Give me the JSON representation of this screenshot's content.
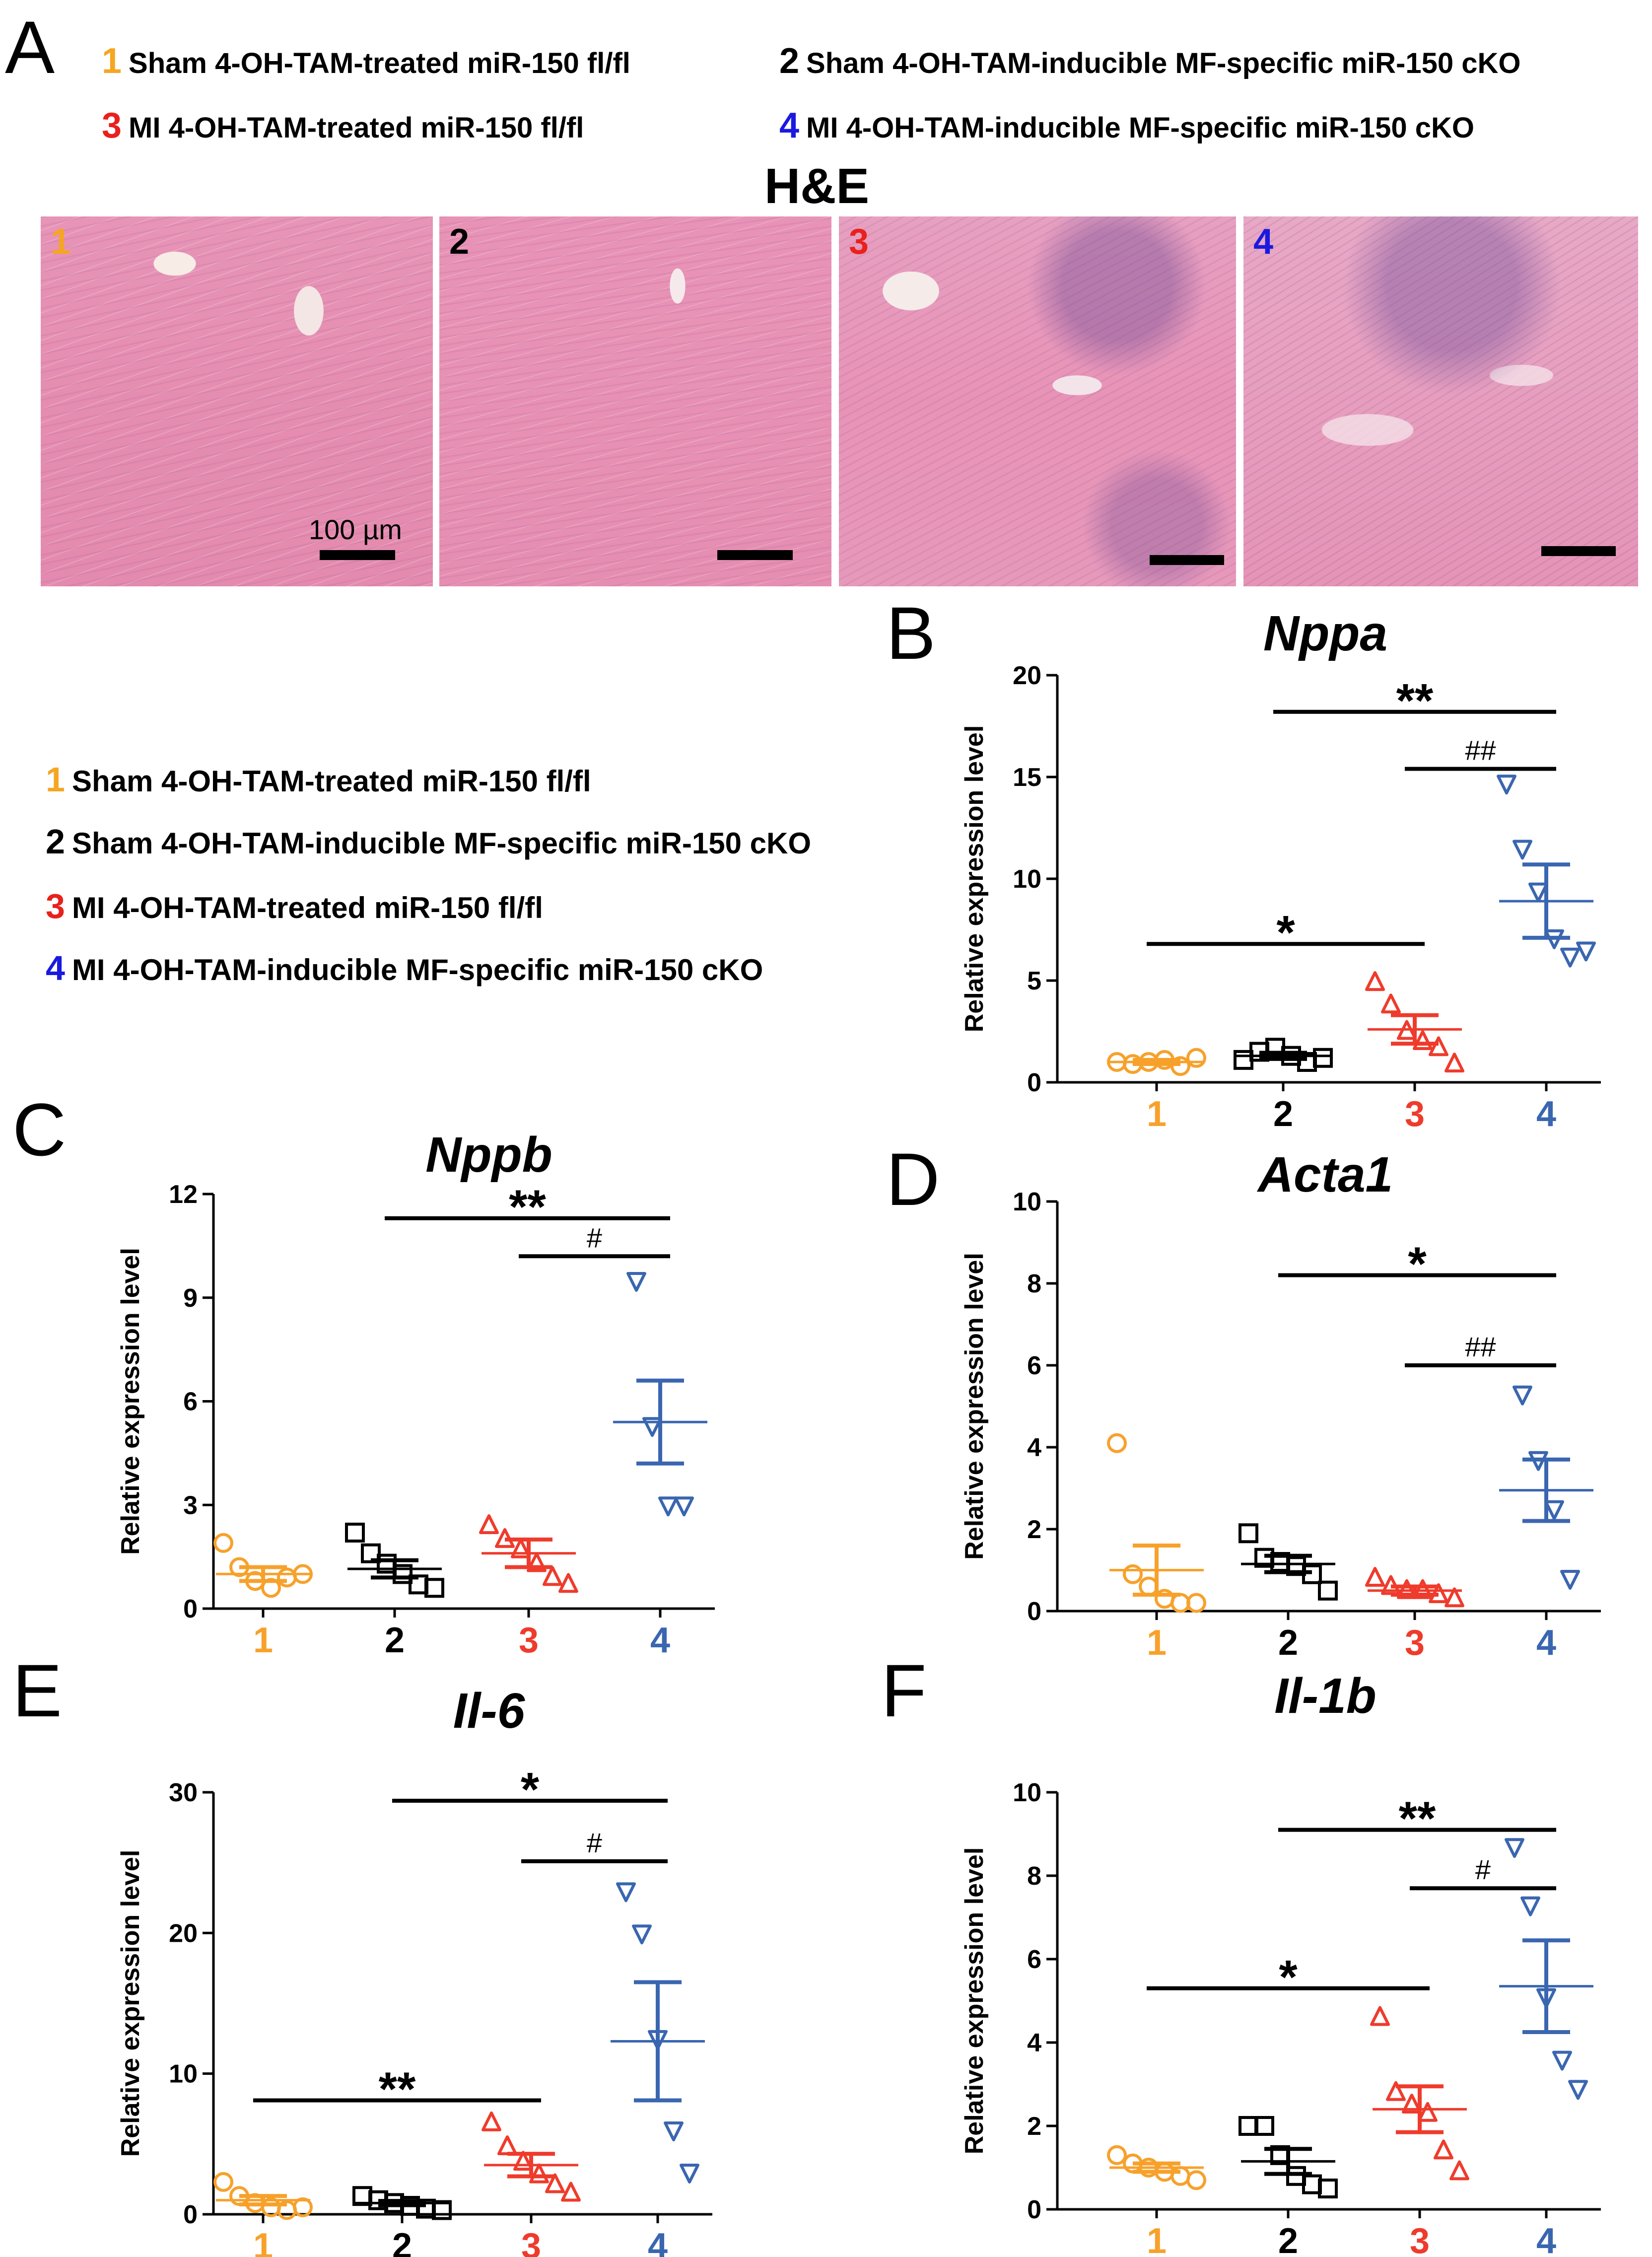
{
  "panel_labels": [
    "A",
    "B",
    "C",
    "D",
    "E",
    "F"
  ],
  "legend": [
    {
      "num": "1",
      "text": "Sham 4-OH-TAM-treated miR-150 fl/fl",
      "color": "#f5a623"
    },
    {
      "num": "2",
      "text": "Sham 4-OH-TAM-inducible MF-specific miR-150 cKO",
      "color": "#000000"
    },
    {
      "num": "3",
      "text": "MI 4-OH-TAM-treated miR-150 fl/fl",
      "color": "#e8211d"
    },
    {
      "num": "4",
      "text": "MI 4-OH-TAM-inducible MF-specific miR-150 cKO",
      "color": "#1a1adf"
    }
  ],
  "he_title": "H&E",
  "scale_label": "100 µm",
  "micrograph_labels": [
    "1",
    "2",
    "3",
    "4"
  ],
  "group_colors": [
    "#f7a12b",
    "#000000",
    "#ef3b2c",
    "#3a66b0"
  ],
  "chart_data": [
    {
      "panel": "B",
      "type": "scatter",
      "title": "Nppa",
      "ylabel": "Relative expression level",
      "categories": [
        "1",
        "2",
        "3",
        "4"
      ],
      "ylim": [
        0,
        20
      ],
      "yticks": [
        0,
        5,
        10,
        15,
        20
      ],
      "series": [
        {
          "points": [
            1.0,
            0.9,
            1.0,
            1.1,
            0.8,
            1.2
          ],
          "mean": 1.0,
          "sem": 0.1
        },
        {
          "points": [
            1.1,
            1.5,
            1.7,
            1.3,
            1.0,
            1.2
          ],
          "mean": 1.3,
          "sem": 0.15
        },
        {
          "points": [
            4.9,
            3.8,
            2.5,
            2.0,
            1.7,
            0.9
          ],
          "mean": 2.6,
          "sem": 0.7
        },
        {
          "points": [
            14.7,
            11.5,
            9.4,
            7.1,
            6.2,
            6.5
          ],
          "mean": 8.9,
          "sem": 1.8
        }
      ],
      "brackets": [
        {
          "from": 0,
          "to": 2,
          "level": 6.8,
          "label": "*"
        },
        {
          "from": 1,
          "to": 3,
          "level": 18.2,
          "label": "**"
        },
        {
          "from": 2,
          "to": 3,
          "level": 15.4,
          "label": "##"
        }
      ]
    },
    {
      "panel": "C",
      "type": "scatter",
      "title": "Nppb",
      "ylabel": "Relative expression level",
      "categories": [
        "1",
        "2",
        "3",
        "4"
      ],
      "ylim": [
        0,
        12
      ],
      "yticks": [
        0,
        3,
        6,
        9,
        12
      ],
      "series": [
        {
          "points": [
            1.9,
            1.2,
            0.8,
            0.6,
            0.9,
            1.0
          ],
          "mean": 1.0,
          "sem": 0.2
        },
        {
          "points": [
            2.2,
            1.6,
            1.3,
            1.0,
            0.7,
            0.6
          ],
          "mean": 1.15,
          "sem": 0.25
        },
        {
          "points": [
            2.4,
            2.0,
            1.7,
            1.3,
            0.9,
            0.7
          ],
          "mean": 1.6,
          "sem": 0.4
        },
        {
          "points": [
            9.5,
            5.3,
            3.0,
            3.0
          ],
          "mean": 5.4,
          "sem": 1.2
        }
      ],
      "brackets": [
        {
          "from": 1,
          "to": 3,
          "level": 11.3,
          "label": "**"
        },
        {
          "from": 2,
          "to": 3,
          "level": 10.2,
          "label": "#"
        }
      ]
    },
    {
      "panel": "D",
      "type": "scatter",
      "title": "Acta1",
      "ylabel": "Relative expression level",
      "categories": [
        "1",
        "2",
        "3",
        "4"
      ],
      "ylim": [
        0,
        10
      ],
      "yticks": [
        0,
        2,
        4,
        6,
        8,
        10
      ],
      "series": [
        {
          "points": [
            4.1,
            0.9,
            0.6,
            0.3,
            0.2,
            0.2
          ],
          "mean": 1.0,
          "sem": 0.6
        },
        {
          "points": [
            1.9,
            1.3,
            1.2,
            1.1,
            0.9,
            0.5
          ],
          "mean": 1.15,
          "sem": 0.2
        },
        {
          "points": [
            0.8,
            0.6,
            0.5,
            0.5,
            0.4,
            0.3
          ],
          "mean": 0.5,
          "sem": 0.1
        },
        {
          "points": [
            5.3,
            3.7,
            2.5,
            0.8
          ],
          "mean": 2.95,
          "sem": 0.75
        }
      ],
      "brackets": [
        {
          "from": 1,
          "to": 3,
          "level": 8.2,
          "label": "*"
        },
        {
          "from": 2,
          "to": 3,
          "level": 6.0,
          "label": "##"
        }
      ]
    },
    {
      "panel": "E",
      "type": "scatter",
      "title": "Il-6",
      "ylabel": "Relative expression level",
      "categories": [
        "1",
        "2",
        "3",
        "4"
      ],
      "ylim": [
        0,
        30
      ],
      "yticks": [
        0,
        10,
        20,
        30
      ],
      "series": [
        {
          "points": [
            2.3,
            1.3,
            0.8,
            0.5,
            0.3,
            0.5
          ],
          "mean": 1.0,
          "sem": 0.3
        },
        {
          "points": [
            1.3,
            1.0,
            0.8,
            0.6,
            0.4,
            0.3
          ],
          "mean": 0.8,
          "sem": 0.15
        },
        {
          "points": [
            6.5,
            4.8,
            3.7,
            2.8,
            2.1,
            1.5
          ],
          "mean": 3.5,
          "sem": 0.8
        },
        {
          "points": [
            23.0,
            20.0,
            12.5,
            6.0,
            3.0
          ],
          "mean": 12.3,
          "sem": 4.2
        }
      ],
      "brackets": [
        {
          "from": 0,
          "to": 2,
          "level": 8.1,
          "label": "**"
        },
        {
          "from": 1,
          "to": 3,
          "level": 29.4,
          "label": "*"
        },
        {
          "from": 2,
          "to": 3,
          "level": 25.1,
          "label": "#"
        }
      ]
    },
    {
      "panel": "F",
      "type": "scatter",
      "title": "Il-1b",
      "ylabel": "Relative expression level",
      "categories": [
        "1",
        "2",
        "3",
        "4"
      ],
      "ylim": [
        0,
        10
      ],
      "yticks": [
        0,
        2,
        4,
        6,
        8,
        10
      ],
      "series": [
        {
          "points": [
            1.3,
            1.1,
            1.0,
            0.9,
            0.8,
            0.7
          ],
          "mean": 1.0,
          "sem": 0.1
        },
        {
          "points": [
            2.0,
            2.0,
            1.3,
            0.8,
            0.6,
            0.5
          ],
          "mean": 1.15,
          "sem": 0.3
        },
        {
          "points": [
            4.6,
            2.8,
            2.5,
            2.3,
            1.4,
            0.9
          ],
          "mean": 2.4,
          "sem": 0.55
        },
        {
          "points": [
            8.7,
            7.3,
            5.1,
            3.6,
            2.9
          ],
          "mean": 5.35,
          "sem": 1.1
        }
      ],
      "brackets": [
        {
          "from": 0,
          "to": 2,
          "level": 5.3,
          "label": "*"
        },
        {
          "from": 1,
          "to": 3,
          "level": 9.1,
          "label": "**"
        },
        {
          "from": 2,
          "to": 3,
          "level": 7.7,
          "label": "#"
        }
      ]
    }
  ]
}
